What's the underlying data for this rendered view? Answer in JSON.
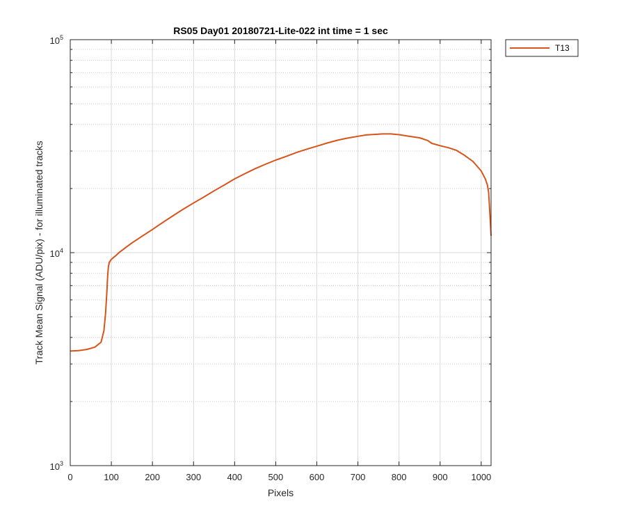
{
  "chart_data": {
    "type": "line",
    "title": "RS05 Day01 20180721-Lite-022 int time = 1 sec",
    "xlabel": "Pixels",
    "ylabel": "Track Mean Signal (ADU/pix) - for illuminated tracks",
    "xlim": [
      0,
      1024
    ],
    "ylim": [
      1000,
      100000
    ],
    "yscale": "log",
    "grid": true,
    "legend_position": "outside-top-right",
    "x_ticks": [
      0,
      100,
      200,
      300,
      400,
      500,
      600,
      700,
      800,
      900,
      1000
    ],
    "y_ticks": [
      {
        "base": "10",
        "exp": "3"
      },
      {
        "base": "10",
        "exp": "4"
      },
      {
        "base": "10",
        "exp": "5"
      }
    ],
    "series": [
      {
        "name": "T13",
        "color": "#d95319",
        "x": [
          0,
          20,
          40,
          60,
          75,
          82,
          86,
          89,
          91,
          93,
          95,
          100,
          110,
          120,
          130,
          140,
          150,
          175,
          200,
          225,
          250,
          275,
          300,
          325,
          350,
          375,
          400,
          425,
          450,
          475,
          500,
          525,
          550,
          575,
          600,
          625,
          650,
          675,
          700,
          720,
          740,
          760,
          780,
          800,
          820,
          850,
          870,
          880,
          900,
          920,
          940,
          960,
          980,
          1000,
          1010,
          1015,
          1018,
          1021,
          1024
        ],
        "y": [
          3450,
          3470,
          3510,
          3600,
          3800,
          4300,
          5200,
          6500,
          7800,
          8600,
          9000,
          9300,
          9650,
          10050,
          10400,
          10750,
          11100,
          11950,
          12850,
          13850,
          14900,
          16000,
          17100,
          18250,
          19500,
          20800,
          22200,
          23500,
          24800,
          26000,
          27200,
          28300,
          29500,
          30600,
          31600,
          32700,
          33700,
          34500,
          35200,
          35700,
          35900,
          36100,
          36100,
          35800,
          35300,
          34600,
          33600,
          32600,
          31800,
          31100,
          30200,
          28600,
          26800,
          24200,
          22200,
          20800,
          19200,
          15500,
          12000
        ]
      }
    ]
  }
}
